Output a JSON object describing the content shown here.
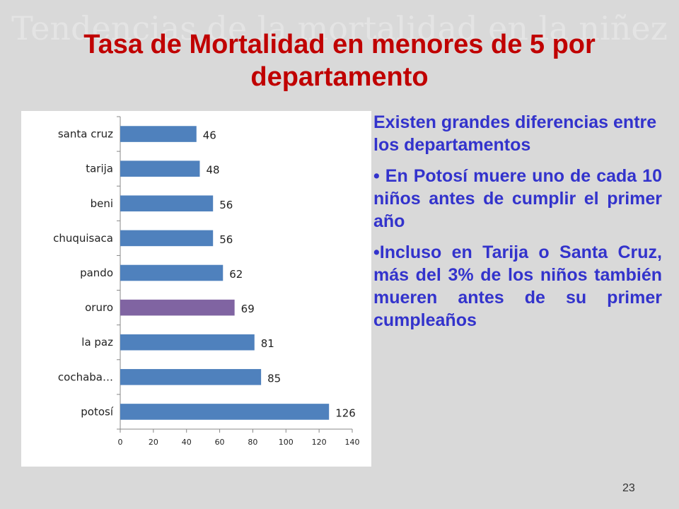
{
  "slide": {
    "ghost_title": "Tendencias de la mortalidad en la niñez",
    "title": "Tasa de Mortalidad en menores de 5 por departamento",
    "page_number": "23"
  },
  "text": {
    "lead": "Existen grandes diferencias entre los departamentos",
    "bullet1": "• En Potosí muere uno de cada 10 niños antes de cumplir el primer año",
    "bullet2": "•Incluso en Tarija o Santa Cruz, más del 3% de los niños también mueren antes de su primer cumpleaños"
  },
  "colors": {
    "bar": "#4f81bd",
    "highlight": "#8064a2",
    "title": "#c00000",
    "body_text": "#3333cc"
  },
  "chart_data": {
    "type": "bar",
    "orientation": "horizontal",
    "categories": [
      "santa cruz",
      "tarija",
      "beni",
      "chuquisaca",
      "pando",
      "oruro",
      "la paz",
      "cochaba…",
      "potosí"
    ],
    "values": [
      46,
      48,
      56,
      56,
      62,
      69,
      81,
      85,
      126
    ],
    "highlight_category": "oruro",
    "xlim": [
      0,
      140
    ],
    "xticks": [
      0,
      20,
      40,
      60,
      80,
      100,
      120,
      140
    ],
    "data_labels": true,
    "grid": false,
    "legend": "none"
  }
}
